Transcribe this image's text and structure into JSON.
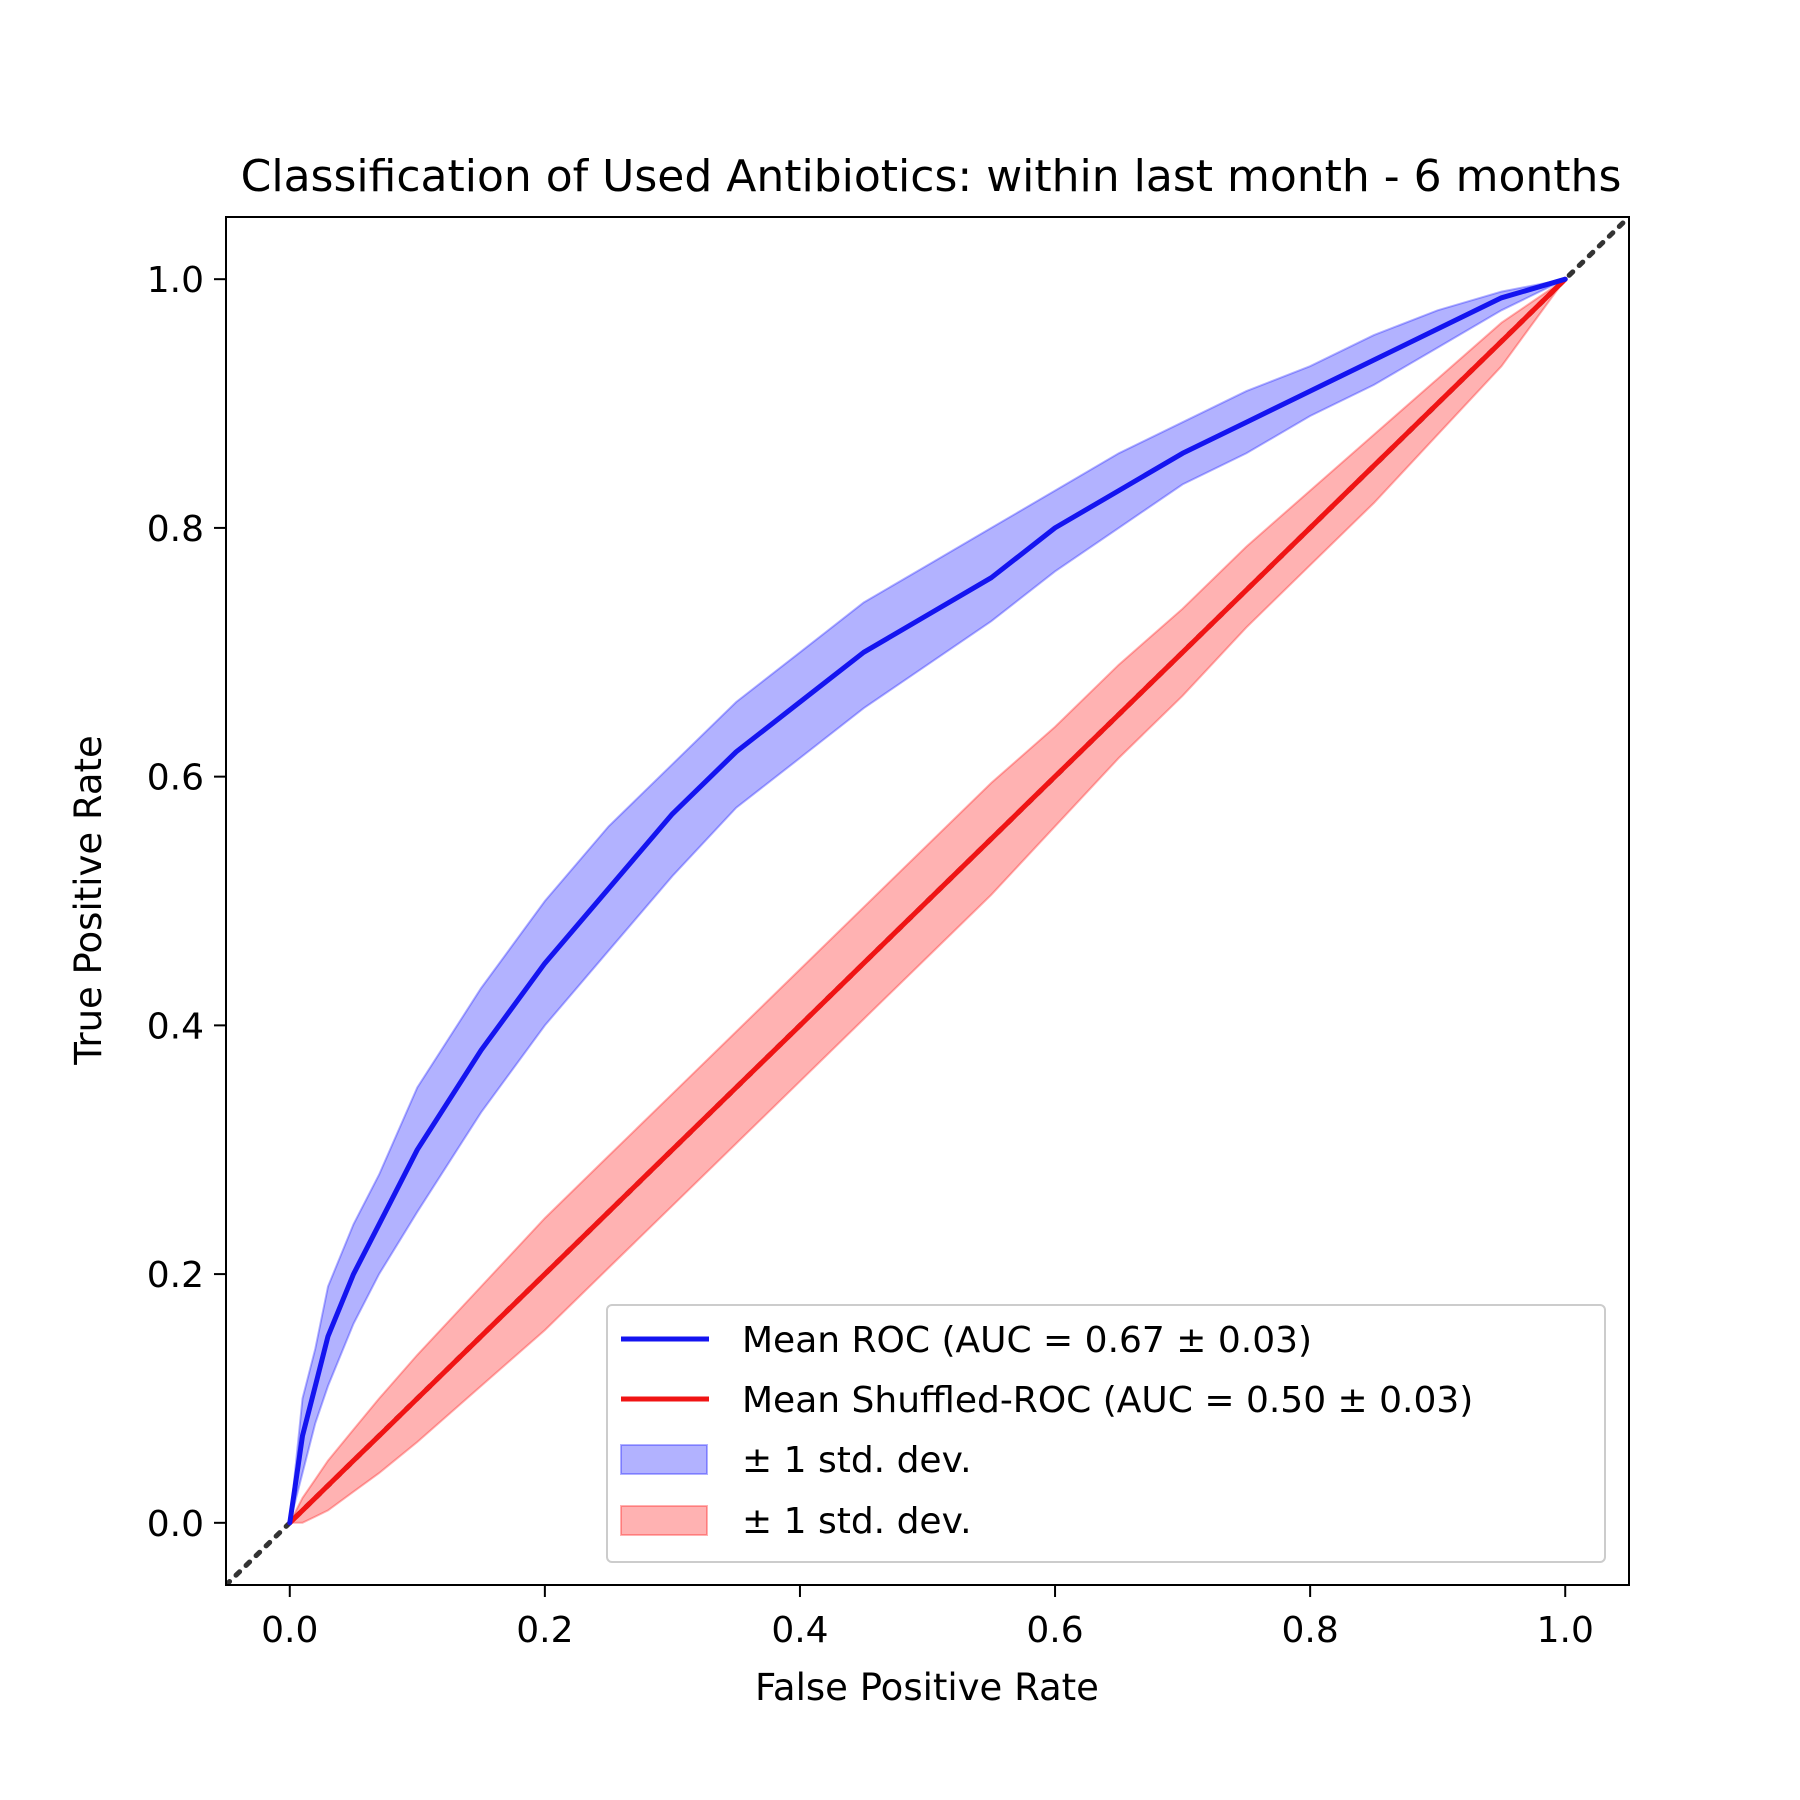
{
  "chart_data": {
    "type": "line",
    "title": "Classification of Used Antibiotics: within last month - 6 months",
    "xlabel": "False Positive Rate",
    "ylabel": "True Positive Rate",
    "xlim": [
      -0.05,
      1.05
    ],
    "ylim": [
      -0.05,
      1.05
    ],
    "x_ticks": [
      "0.0",
      "0.2",
      "0.4",
      "0.6",
      "0.8",
      "1.0"
    ],
    "y_ticks": [
      "0.0",
      "0.2",
      "0.4",
      "0.6",
      "0.8",
      "1.0"
    ],
    "grid": false,
    "legend_position": "lower-right",
    "x": [
      0,
      0.01,
      0.02,
      0.03,
      0.05,
      0.07,
      0.1,
      0.15,
      0.2,
      0.25,
      0.3,
      0.35,
      0.4,
      0.45,
      0.5,
      0.55,
      0.6,
      0.65,
      0.7,
      0.75,
      0.8,
      0.85,
      0.9,
      0.95,
      1.0
    ],
    "series": [
      {
        "name": "Mean ROC (AUC = 0.67 ± 0.03)",
        "color": "#1414f0",
        "y": [
          0,
          0.07,
          0.11,
          0.15,
          0.2,
          0.24,
          0.3,
          0.38,
          0.45,
          0.51,
          0.57,
          0.62,
          0.66,
          0.7,
          0.73,
          0.76,
          0.8,
          0.83,
          0.86,
          0.885,
          0.91,
          0.935,
          0.96,
          0.985,
          1.0
        ]
      },
      {
        "name": "Mean Shuffled-ROC (AUC = 0.50 ± 0.03)",
        "color": "#f01414",
        "y": [
          0,
          0.01,
          0.02,
          0.03,
          0.05,
          0.07,
          0.1,
          0.15,
          0.2,
          0.25,
          0.3,
          0.35,
          0.4,
          0.45,
          0.5,
          0.55,
          0.6,
          0.65,
          0.7,
          0.75,
          0.8,
          0.85,
          0.9,
          0.95,
          1.0
        ]
      }
    ],
    "bands": [
      {
        "name": "± 1 std. dev.",
        "color": "#0000ff",
        "lower": [
          0,
          0.04,
          0.08,
          0.11,
          0.16,
          0.2,
          0.25,
          0.33,
          0.4,
          0.46,
          0.52,
          0.575,
          0.615,
          0.655,
          0.69,
          0.725,
          0.765,
          0.8,
          0.835,
          0.86,
          0.89,
          0.915,
          0.945,
          0.975,
          1.0
        ],
        "upper": [
          0,
          0.1,
          0.14,
          0.19,
          0.24,
          0.28,
          0.35,
          0.43,
          0.5,
          0.56,
          0.61,
          0.66,
          0.7,
          0.74,
          0.77,
          0.8,
          0.83,
          0.86,
          0.885,
          0.91,
          0.93,
          0.955,
          0.975,
          0.99,
          1.0
        ]
      },
      {
        "name": "± 1 std. dev.",
        "color": "#ff0000",
        "lower": [
          0,
          0.0,
          0.005,
          0.01,
          0.025,
          0.04,
          0.065,
          0.11,
          0.155,
          0.205,
          0.255,
          0.305,
          0.355,
          0.405,
          0.455,
          0.505,
          0.56,
          0.615,
          0.665,
          0.72,
          0.77,
          0.82,
          0.875,
          0.93,
          1.0
        ],
        "upper": [
          0,
          0.02,
          0.035,
          0.05,
          0.075,
          0.1,
          0.135,
          0.19,
          0.245,
          0.295,
          0.345,
          0.395,
          0.445,
          0.495,
          0.545,
          0.595,
          0.64,
          0.69,
          0.735,
          0.785,
          0.83,
          0.875,
          0.92,
          0.965,
          1.0
        ]
      }
    ],
    "reference_line": {
      "style": "dotted",
      "color": "#333333"
    },
    "legend": [
      "Mean ROC (AUC = 0.67 ± 0.03)",
      "Mean Shuffled-ROC (AUC = 0.50 ± 0.03)",
      "± 1 std. dev.",
      "± 1 std. dev."
    ]
  }
}
